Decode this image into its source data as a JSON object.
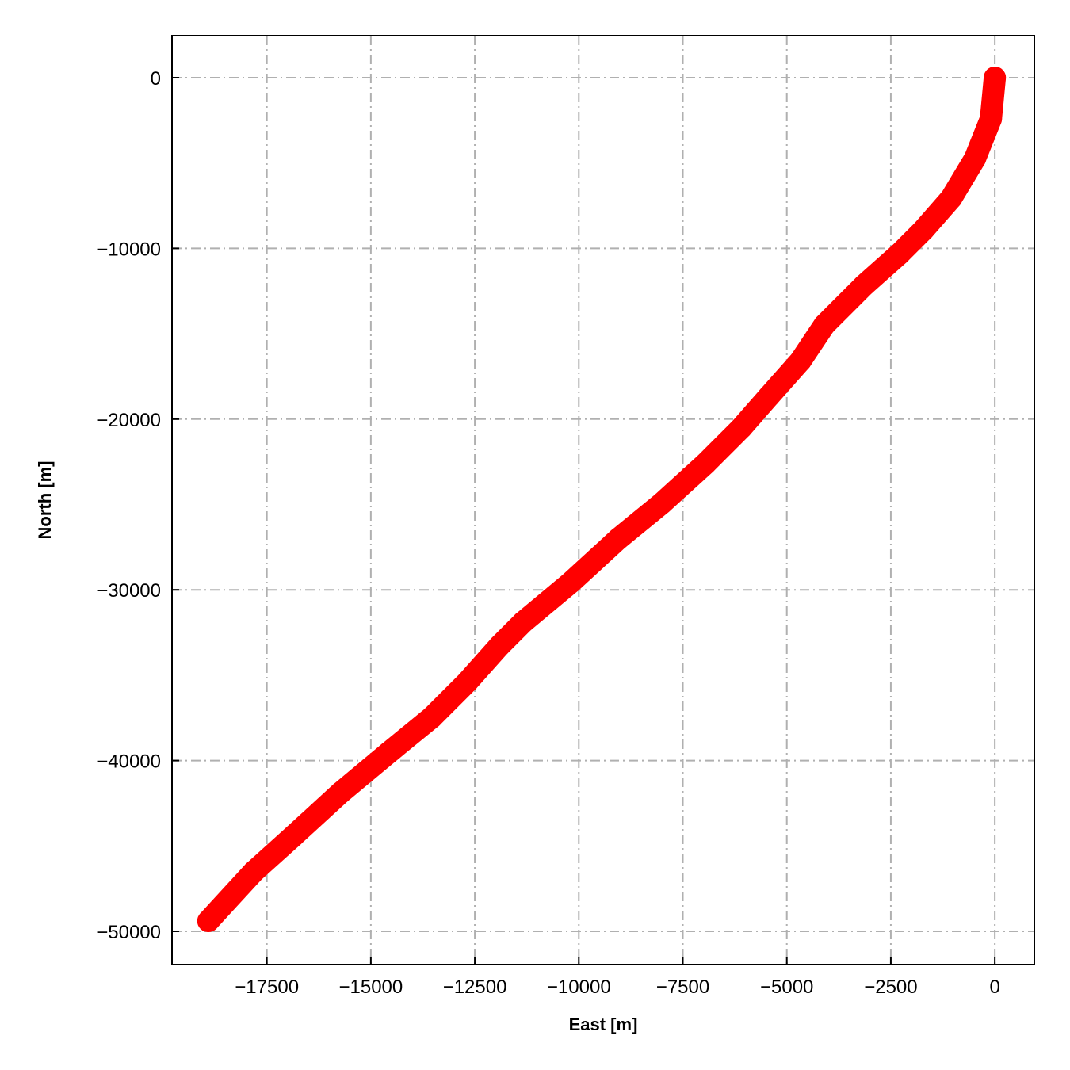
{
  "chart_data": {
    "type": "scatter",
    "xlabel": "East [m]",
    "ylabel": "North [m]",
    "color": "#ff0000",
    "grid": true,
    "xlim": [
      -19780,
      950
    ],
    "ylim": [
      -51950,
      2460
    ],
    "xticks": [
      {
        "value": -17500,
        "label": "−17500"
      },
      {
        "value": -15000,
        "label": "−15000"
      },
      {
        "value": -12500,
        "label": "−12500"
      },
      {
        "value": -10000,
        "label": "−10000"
      },
      {
        "value": -7500,
        "label": "−7500"
      },
      {
        "value": -5000,
        "label": "−5000"
      },
      {
        "value": -2500,
        "label": "−2500"
      },
      0
    ],
    "yticks": [
      0,
      {
        "value": -10000,
        "label": "−10000"
      },
      {
        "value": -20000,
        "label": "−20000"
      },
      {
        "value": -30000,
        "label": "−30000"
      },
      {
        "value": -40000,
        "label": "−40000"
      },
      {
        "value": -50000,
        "label": "−50000"
      }
    ],
    "x": [
      0,
      -95,
      -476,
      -1048,
      -1715,
      -2287,
      -3144,
      -4097,
      -4669,
      -5431,
      -6098,
      -6956,
      -8004,
      -9053,
      -10196,
      -11340,
      -11911,
      -12674,
      -13532,
      -14580,
      -15723,
      -16867,
      -17820,
      -18906
    ],
    "values": [
      0,
      -2414,
      -4735,
      -7057,
      -8914,
      -10307,
      -12164,
      -14485,
      -16574,
      -18663,
      -20520,
      -22609,
      -24930,
      -27019,
      -29573,
      -31894,
      -33287,
      -35376,
      -37465,
      -39554,
      -41875,
      -44429,
      -46518,
      -49396
    ]
  }
}
